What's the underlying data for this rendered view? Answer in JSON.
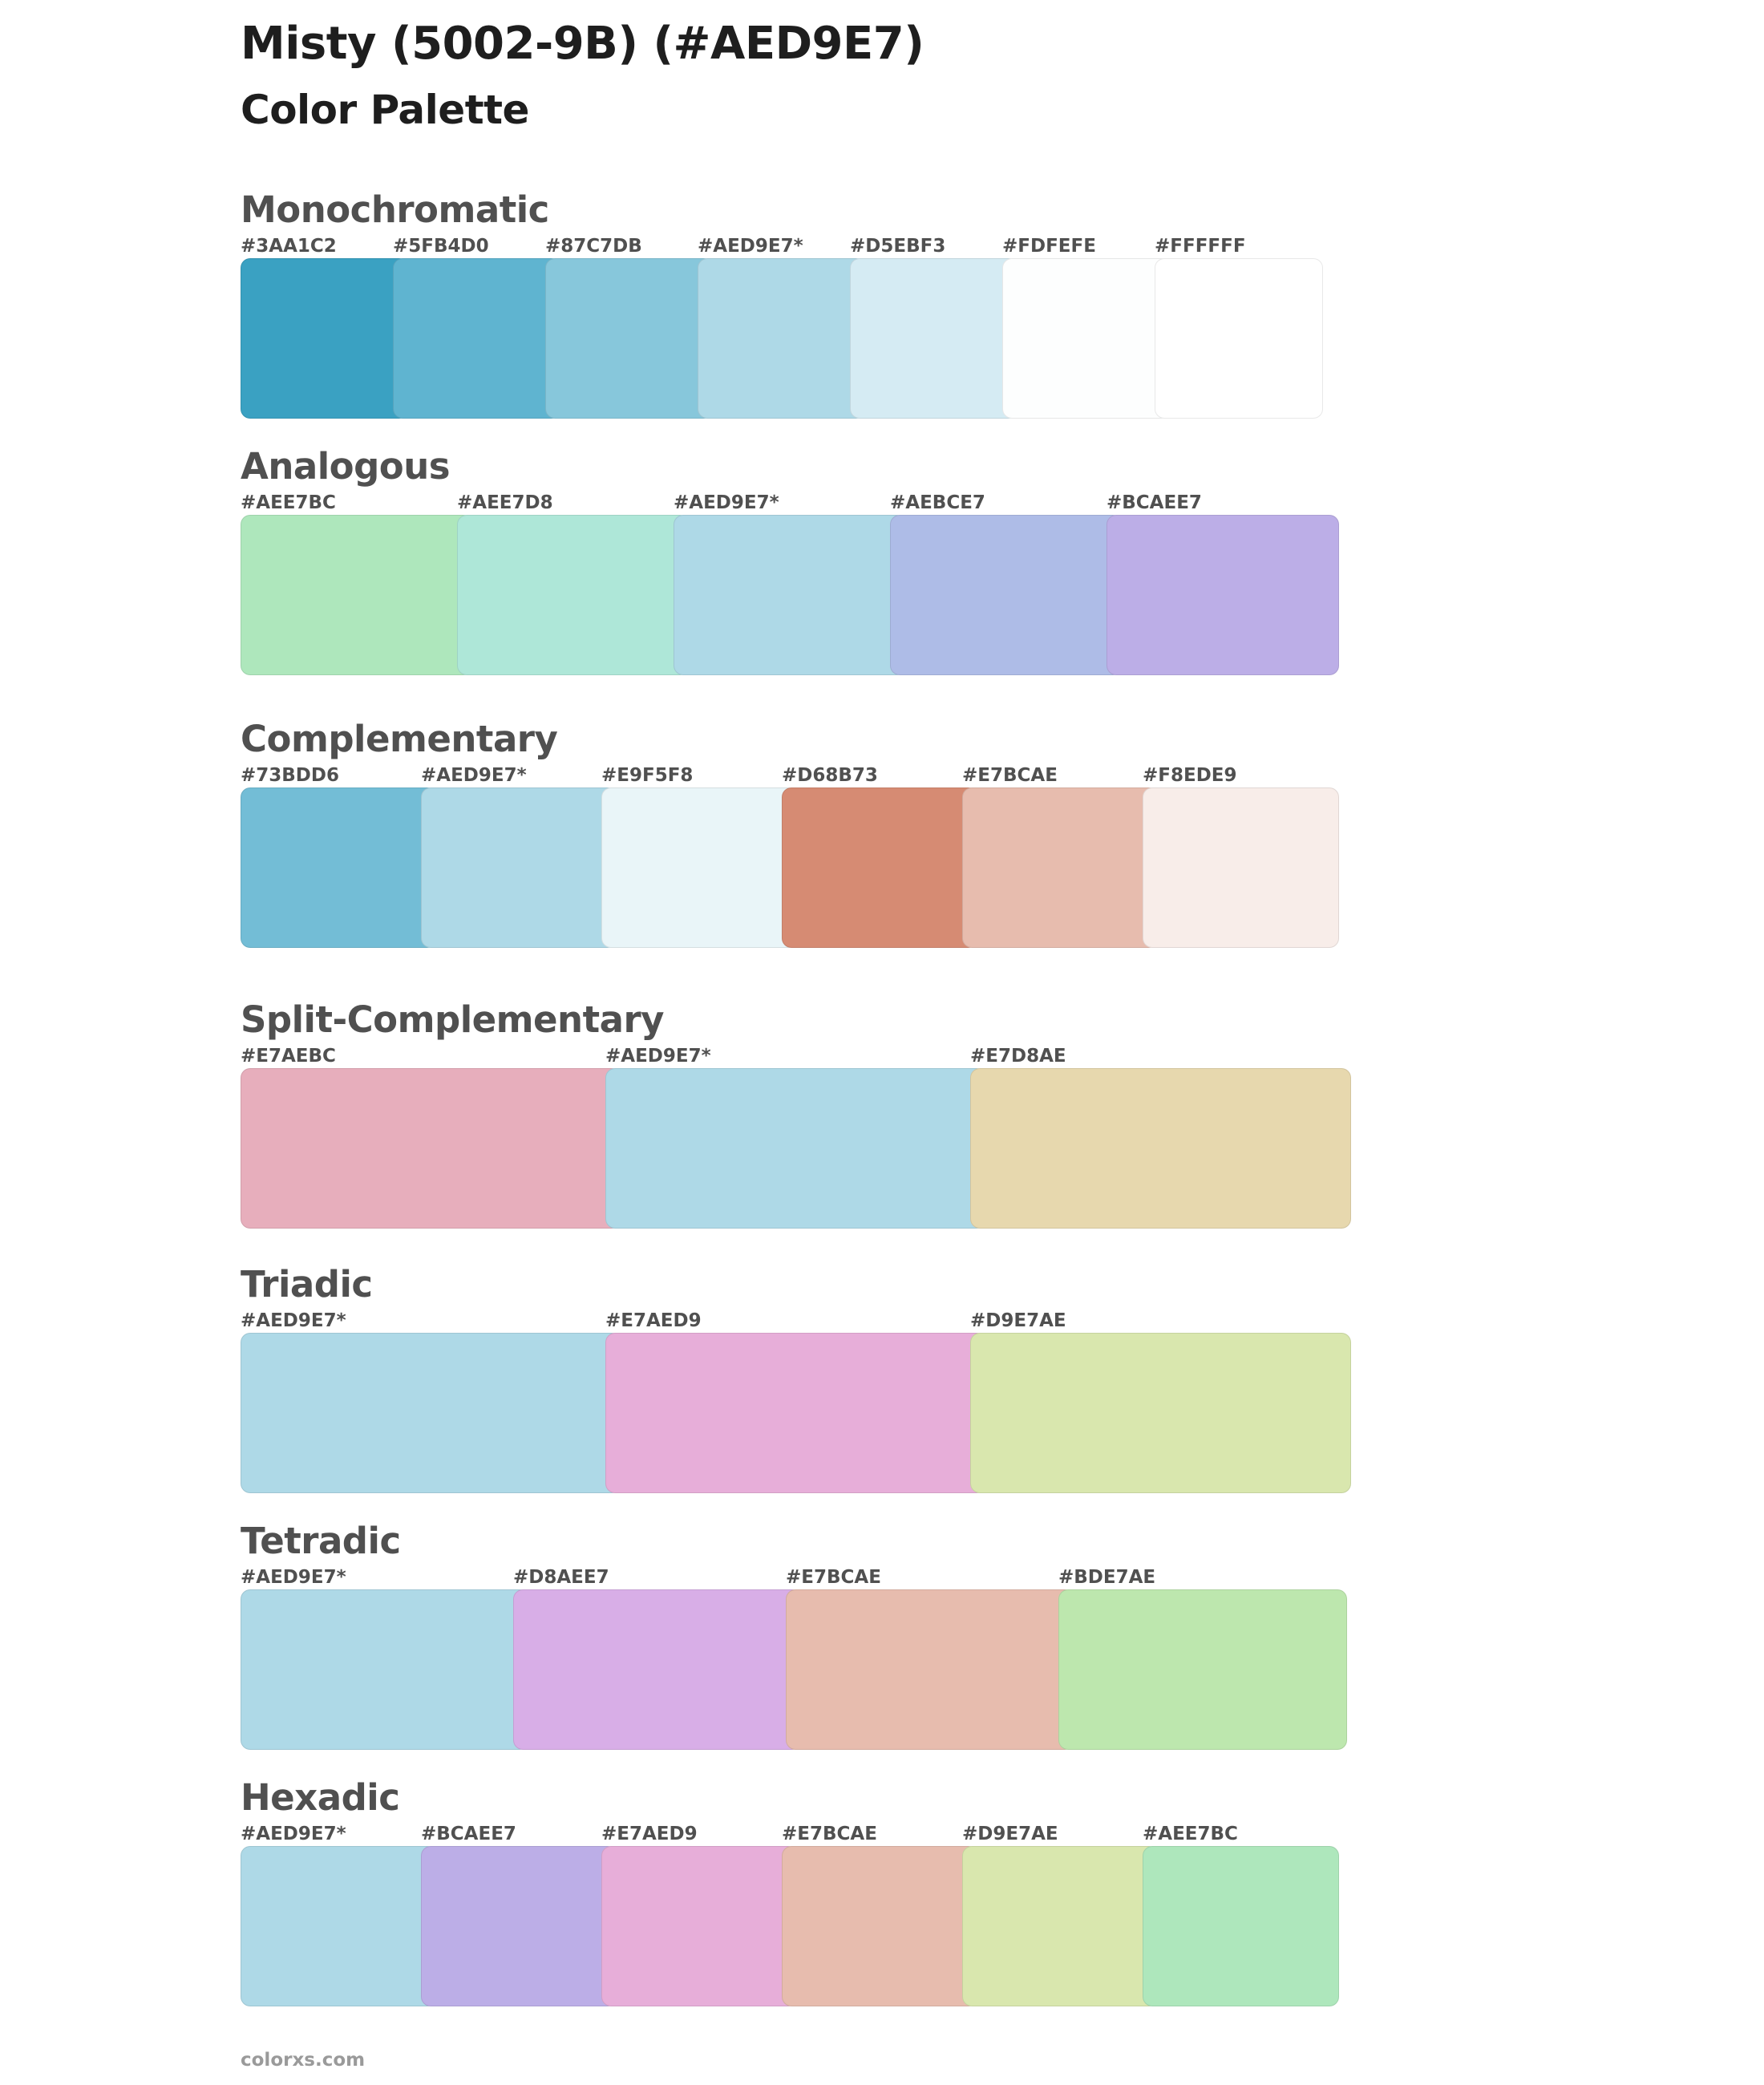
{
  "title": "Misty (5002-9B) (#AED9E7)",
  "subtitle": "Color Palette",
  "footer": "colorxs.com",
  "sections": [
    {
      "name": "Monochromatic",
      "colors": [
        {
          "label": "#3AA1C2",
          "hex": "#3AA1C2"
        },
        {
          "label": "#5FB4D0",
          "hex": "#5FB4D0"
        },
        {
          "label": "#87C7DB",
          "hex": "#87C7DB"
        },
        {
          "label": "#AED9E7*",
          "hex": "#AED9E7"
        },
        {
          "label": "#D5EBF3",
          "hex": "#D5EBF3"
        },
        {
          "label": "#FDFEFE",
          "hex": "#FDFEFE"
        },
        {
          "label": "#FFFFFF",
          "hex": "#FFFFFF"
        }
      ]
    },
    {
      "name": "Analogous",
      "colors": [
        {
          "label": "#AEE7BC",
          "hex": "#AEE7BC"
        },
        {
          "label": "#AEE7D8",
          "hex": "#AEE7D8"
        },
        {
          "label": "#AED9E7*",
          "hex": "#AED9E7"
        },
        {
          "label": "#AEBCE7",
          "hex": "#AEBCE7"
        },
        {
          "label": "#BCAEE7",
          "hex": "#BCAEE7"
        }
      ]
    },
    {
      "name": "Complementary",
      "colors": [
        {
          "label": "#73BDD6",
          "hex": "#73BDD6"
        },
        {
          "label": "#AED9E7*",
          "hex": "#AED9E7"
        },
        {
          "label": "#E9F5F8",
          "hex": "#E9F5F8"
        },
        {
          "label": "#D68B73",
          "hex": "#D68B73"
        },
        {
          "label": "#E7BCAE",
          "hex": "#E7BCAE"
        },
        {
          "label": "#F8EDE9",
          "hex": "#F8EDE9"
        }
      ]
    },
    {
      "name": "Split-Complementary",
      "colors": [
        {
          "label": "#E7AEBC",
          "hex": "#E7AEBC"
        },
        {
          "label": "#AED9E7*",
          "hex": "#AED9E7"
        },
        {
          "label": "#E7D8AE",
          "hex": "#E7D8AE"
        }
      ]
    },
    {
      "name": "Triadic",
      "colors": [
        {
          "label": "#AED9E7*",
          "hex": "#AED9E7"
        },
        {
          "label": "#E7AED9",
          "hex": "#E7AED9"
        },
        {
          "label": "#D9E7AE",
          "hex": "#D9E7AE"
        }
      ]
    },
    {
      "name": "Tetradic",
      "colors": [
        {
          "label": "#AED9E7*",
          "hex": "#AED9E7"
        },
        {
          "label": "#D8AEE7",
          "hex": "#D8AEE7"
        },
        {
          "label": "#E7BCAE",
          "hex": "#E7BCAE"
        },
        {
          "label": "#BDE7AE",
          "hex": "#BDE7AE"
        }
      ]
    },
    {
      "name": "Hexadic",
      "colors": [
        {
          "label": "#AED9E7*",
          "hex": "#AED9E7"
        },
        {
          "label": "#BCAEE7",
          "hex": "#BCAEE7"
        },
        {
          "label": "#E7AED9",
          "hex": "#E7AED9"
        },
        {
          "label": "#E7BCAE",
          "hex": "#E7BCAE"
        },
        {
          "label": "#D9E7AE",
          "hex": "#D9E7AE"
        },
        {
          "label": "#AEE7BC",
          "hex": "#AEE7BC"
        }
      ]
    }
  ]
}
